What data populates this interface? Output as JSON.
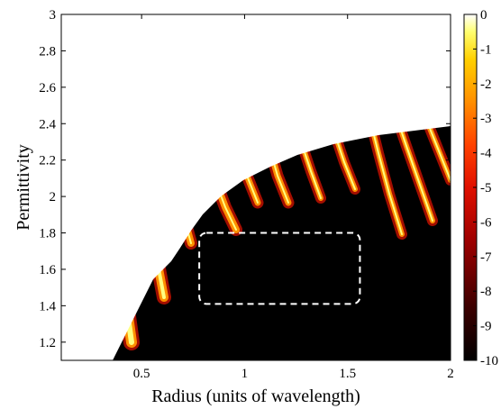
{
  "chart_data": {
    "type": "heatmap",
    "title": "",
    "xlabel": "Radius (units of wavelength)",
    "ylabel": "Permittivity",
    "xlim": [
      0.11,
      2.0
    ],
    "ylim": [
      1.1,
      3.0
    ],
    "x_ticks": [
      {
        "value": 0.5,
        "label": "0.5"
      },
      {
        "value": 1.0,
        "label": "1"
      },
      {
        "value": 1.5,
        "label": "1.5"
      },
      {
        "value": 2.0,
        "label": "2"
      }
    ],
    "y_ticks": [
      {
        "value": 1.2,
        "label": "1.2"
      },
      {
        "value": 1.4,
        "label": "1.4"
      },
      {
        "value": 1.6,
        "label": "1.6"
      },
      {
        "value": 1.8,
        "label": "1.8"
      },
      {
        "value": 2.0,
        "label": "2"
      },
      {
        "value": 2.2,
        "label": "2.2"
      },
      {
        "value": 2.4,
        "label": "2.4"
      },
      {
        "value": 2.6,
        "label": "2.6"
      },
      {
        "value": 2.8,
        "label": "2.8"
      },
      {
        "value": 3.0,
        "label": "3"
      }
    ],
    "colorbar": {
      "range": [
        -10,
        0
      ],
      "colormap": "hot",
      "ticks": [
        {
          "value": 0,
          "label": "0"
        },
        {
          "value": -1,
          "label": "-1"
        },
        {
          "value": -2,
          "label": "-2"
        },
        {
          "value": -3,
          "label": "-3"
        },
        {
          "value": -4,
          "label": "-4"
        },
        {
          "value": -5,
          "label": "-5"
        },
        {
          "value": -6,
          "label": "-6"
        },
        {
          "value": -7,
          "label": "-7"
        },
        {
          "value": -8,
          "label": "-8"
        },
        {
          "value": -9,
          "label": "-9"
        },
        {
          "value": -10,
          "label": "-10"
        }
      ]
    },
    "grid": false,
    "highlight_region": {
      "style": "dashed",
      "color": "#ffffff",
      "x_range": [
        0.78,
        1.56
      ],
      "y_range": [
        1.41,
        1.8
      ]
    },
    "features": {
      "saturated_region": "upper-right above boundary, value ~0",
      "minimum_region": "lower area, value ~-10"
    }
  }
}
